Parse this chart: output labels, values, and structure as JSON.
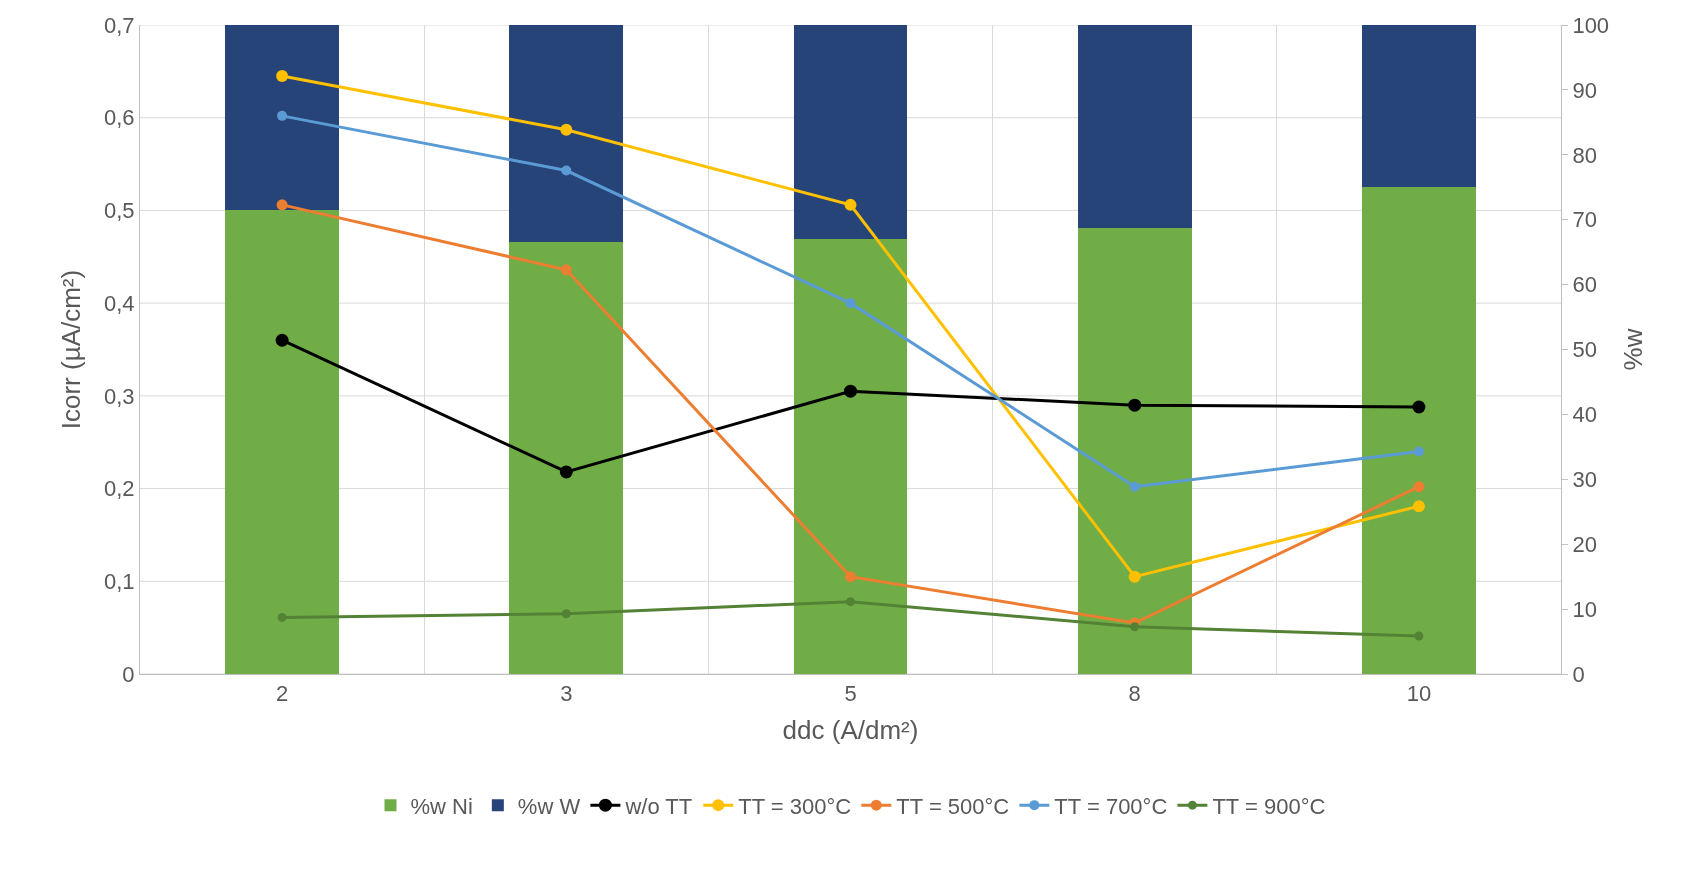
{
  "chart_data": {
    "type": "bar",
    "xlabel": "ddc (A/dm²)",
    "ylabel": "Icorr (µA/cm²)",
    "y2label": "%w",
    "categories": [
      "2",
      "3",
      "5",
      "8",
      "10"
    ],
    "stacked": true,
    "grid": true,
    "legend": "bottom",
    "marker": "circle",
    "line_style": "solid",
    "ylim": [
      0,
      0.7
    ],
    "yticks": [
      {
        "value": 0,
        "label": "0"
      },
      {
        "value": 0.1,
        "label": "0,1"
      },
      {
        "value": 0.2,
        "label": "0,2"
      },
      {
        "value": 0.3,
        "label": "0,3"
      },
      {
        "value": 0.4,
        "label": "0,4"
      },
      {
        "value": 0.5,
        "label": "0,5"
      },
      {
        "value": 0.6,
        "label": "0,6"
      },
      {
        "value": 0.7,
        "label": "0,7"
      }
    ],
    "y2lim": [
      0,
      100
    ],
    "y2ticks": [
      0,
      10,
      20,
      30,
      40,
      50,
      60,
      70,
      80,
      90,
      100
    ],
    "series": [
      {
        "name": "%w Ni",
        "axis": "y2",
        "color": "#70ad47",
        "values": [
          71.5,
          66.5,
          67,
          68.7,
          75
        ]
      },
      {
        "name": "%w W",
        "axis": "y2",
        "color": "#264478",
        "values": [
          28.5,
          33.5,
          33,
          31.3,
          25
        ]
      },
      {
        "name": "w/o TT",
        "type": "line",
        "color": "#000000",
        "values": [
          0.36,
          0.218,
          0.305,
          0.29,
          0.288
        ]
      },
      {
        "name": "TT = 300°C",
        "type": "line",
        "color": "#ffc000",
        "values": [
          0.645,
          0.587,
          0.506,
          0.105,
          0.181
        ]
      },
      {
        "name": "TT = 500°C",
        "type": "line",
        "color": "#ed7d31",
        "values": [
          0.506,
          0.436,
          0.105,
          0.055,
          0.202
        ]
      },
      {
        "name": "TT = 700°C",
        "type": "line",
        "color": "#5b9bd5",
        "values": [
          0.602,
          0.543,
          0.4,
          0.202,
          0.24
        ]
      },
      {
        "name": "TT = 900°C",
        "type": "line",
        "color": "#548235",
        "values": [
          0.061,
          0.065,
          0.078,
          0.051,
          0.041
        ]
      }
    ]
  }
}
